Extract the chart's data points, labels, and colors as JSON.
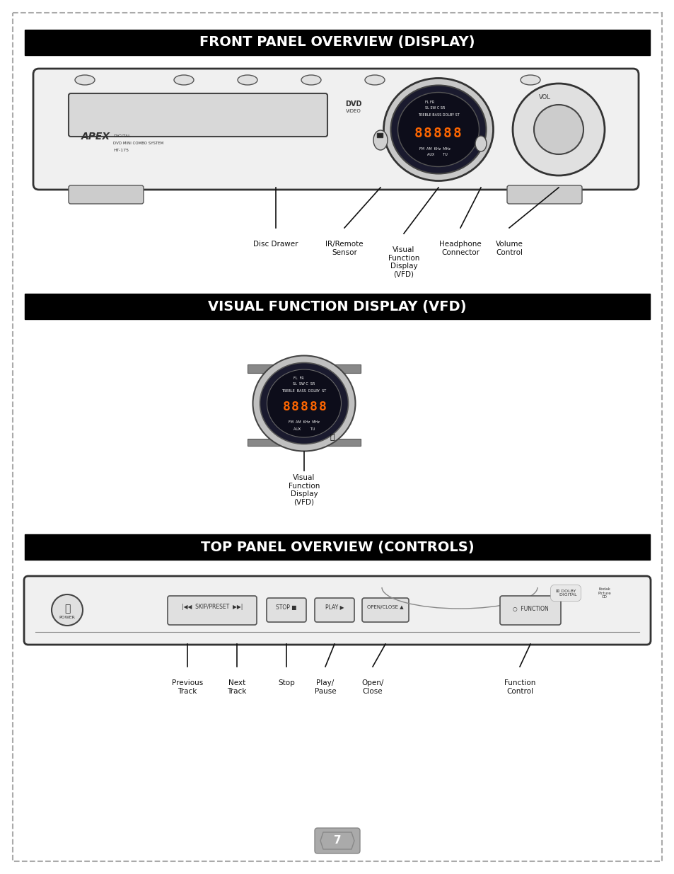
{
  "page_bg": "#ffffff",
  "border_color": "#aaaaaa",
  "border_dash": true,
  "page_num": "7",
  "section1_title": "FRONT PANEL OVERVIEW (DISPLAY)",
  "section2_title": "VISUAL FUNCTION DISPLAY (VFD)",
  "section3_title": "TOP PANEL OVERVIEW (CONTROLS)",
  "title_bg": "#000000",
  "title_color": "#ffffff",
  "title_fontsize": 14,
  "body_fontsize": 8,
  "label_fontsize": 8,
  "section1_labels": [
    "Disc Drawer",
    "IR/Remote\nSensor",
    "Visual\nFunction\nDisplay\n(VFD)",
    "Headphone\nConnector",
    "Volume\nControl"
  ],
  "section2_labels": [
    "Visual\nFunction\nDisplay\n(VFD)"
  ],
  "section3_labels": [
    "Previous\nTrack",
    "Next\nTrack",
    "Stop",
    "Play/\nPause",
    "Open/\nClose",
    "Function\nControl"
  ]
}
